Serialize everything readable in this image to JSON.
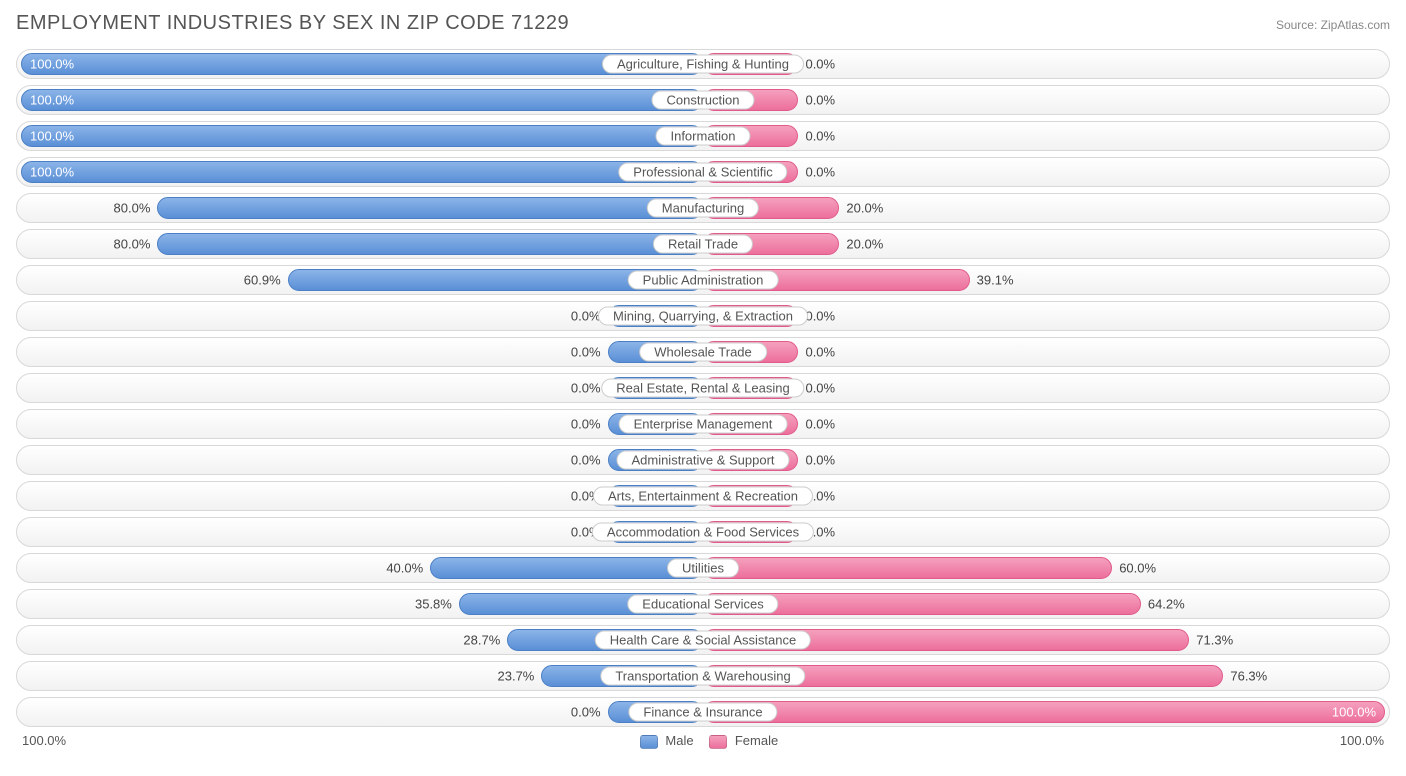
{
  "header": {
    "title": "EMPLOYMENT INDUSTRIES BY SEX IN ZIP CODE 71229",
    "source": "Source: ZipAtlas.com"
  },
  "chart": {
    "type": "diverging-bar",
    "male_color": "#6a9bdc",
    "female_color": "#ee7ba4",
    "track_border": "#d8d8d8",
    "track_bg_top": "#ffffff",
    "track_bg_bottom": "#f2f2f2",
    "label_fontsize": 13,
    "title_fontsize": 20,
    "min_bar_pct": 14,
    "rows": [
      {
        "category": "Agriculture, Fishing & Hunting",
        "male_pct": 100.0,
        "female_pct": 0.0,
        "male_label": "100.0%",
        "female_label": "0.0%"
      },
      {
        "category": "Construction",
        "male_pct": 100.0,
        "female_pct": 0.0,
        "male_label": "100.0%",
        "female_label": "0.0%"
      },
      {
        "category": "Information",
        "male_pct": 100.0,
        "female_pct": 0.0,
        "male_label": "100.0%",
        "female_label": "0.0%"
      },
      {
        "category": "Professional & Scientific",
        "male_pct": 100.0,
        "female_pct": 0.0,
        "male_label": "100.0%",
        "female_label": "0.0%"
      },
      {
        "category": "Manufacturing",
        "male_pct": 80.0,
        "female_pct": 20.0,
        "male_label": "80.0%",
        "female_label": "20.0%"
      },
      {
        "category": "Retail Trade",
        "male_pct": 80.0,
        "female_pct": 20.0,
        "male_label": "80.0%",
        "female_label": "20.0%"
      },
      {
        "category": "Public Administration",
        "male_pct": 60.9,
        "female_pct": 39.1,
        "male_label": "60.9%",
        "female_label": "39.1%"
      },
      {
        "category": "Mining, Quarrying, & Extraction",
        "male_pct": 0.0,
        "female_pct": 0.0,
        "male_label": "0.0%",
        "female_label": "0.0%"
      },
      {
        "category": "Wholesale Trade",
        "male_pct": 0.0,
        "female_pct": 0.0,
        "male_label": "0.0%",
        "female_label": "0.0%"
      },
      {
        "category": "Real Estate, Rental & Leasing",
        "male_pct": 0.0,
        "female_pct": 0.0,
        "male_label": "0.0%",
        "female_label": "0.0%"
      },
      {
        "category": "Enterprise Management",
        "male_pct": 0.0,
        "female_pct": 0.0,
        "male_label": "0.0%",
        "female_label": "0.0%"
      },
      {
        "category": "Administrative & Support",
        "male_pct": 0.0,
        "female_pct": 0.0,
        "male_label": "0.0%",
        "female_label": "0.0%"
      },
      {
        "category": "Arts, Entertainment & Recreation",
        "male_pct": 0.0,
        "female_pct": 0.0,
        "male_label": "0.0%",
        "female_label": "0.0%"
      },
      {
        "category": "Accommodation & Food Services",
        "male_pct": 0.0,
        "female_pct": 0.0,
        "male_label": "0.0%",
        "female_label": "0.0%"
      },
      {
        "category": "Utilities",
        "male_pct": 40.0,
        "female_pct": 60.0,
        "male_label": "40.0%",
        "female_label": "60.0%"
      },
      {
        "category": "Educational Services",
        "male_pct": 35.8,
        "female_pct": 64.2,
        "male_label": "35.8%",
        "female_label": "64.2%"
      },
      {
        "category": "Health Care & Social Assistance",
        "male_pct": 28.7,
        "female_pct": 71.3,
        "male_label": "28.7%",
        "female_label": "71.3%"
      },
      {
        "category": "Transportation & Warehousing",
        "male_pct": 23.7,
        "female_pct": 76.3,
        "male_label": "23.7%",
        "female_label": "76.3%"
      },
      {
        "category": "Finance & Insurance",
        "male_pct": 0.0,
        "female_pct": 100.0,
        "male_label": "0.0%",
        "female_label": "100.0%"
      }
    ]
  },
  "footer": {
    "axis_left": "100.0%",
    "axis_right": "100.0%",
    "legend_male": "Male",
    "legend_female": "Female"
  }
}
